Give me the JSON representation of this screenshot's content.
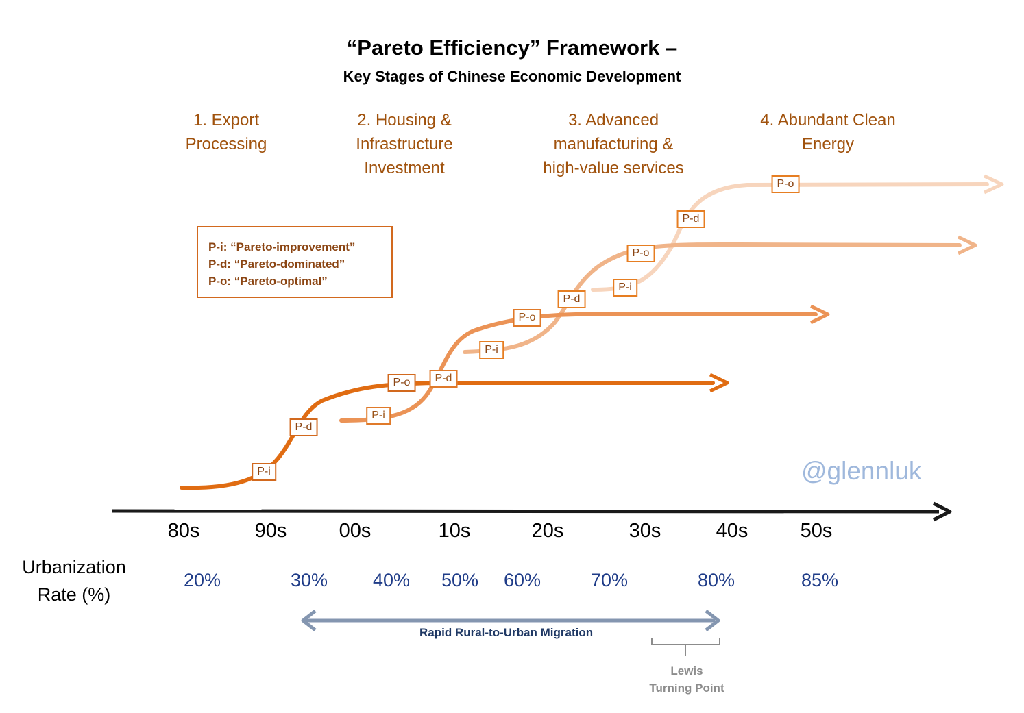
{
  "title": "“Pareto Efficiency” Framework –",
  "subtitle": "Key Stages of Chinese Economic Development",
  "stages": [
    {
      "label": "1. Export\nProcessing"
    },
    {
      "label": "2. Housing &\nInfrastructure\nInvestment"
    },
    {
      "label": "3. Advanced\nmanufacturing &\nhigh-value services"
    },
    {
      "label": "4. Abundant Clean\nEnergy"
    }
  ],
  "legend": {
    "items": [
      "P-i: “Pareto-improvement”",
      "P-d: “Pareto-dominated”",
      "P-o: “Pareto-optimal”"
    ]
  },
  "tags": {
    "pi": "P-i",
    "pd": "P-d",
    "po": "P-o"
  },
  "decades": [
    "80s",
    "90s",
    "00s",
    "10s",
    "20s",
    "30s",
    "40s",
    "50s"
  ],
  "urbanization": {
    "label": "Urbanization\nRate (%)",
    "rates": [
      "20%",
      "30%",
      "40%",
      "50%",
      "60%",
      "70%",
      "80%",
      "85%"
    ]
  },
  "handle": "@glennluk",
  "migration_label": "Rapid Rural-to-Urban Migration",
  "lewis_label": "Lewis\nTurning Point",
  "colors": {
    "curve1": "#e06c12",
    "curve2": "#eb9356",
    "curve3": "#f0b489",
    "curve4": "#f7d5bd",
    "timeline": "#1a1a1a",
    "migration_arrow": "#8496b0",
    "lewis_bracket": "#8c8c8c"
  }
}
